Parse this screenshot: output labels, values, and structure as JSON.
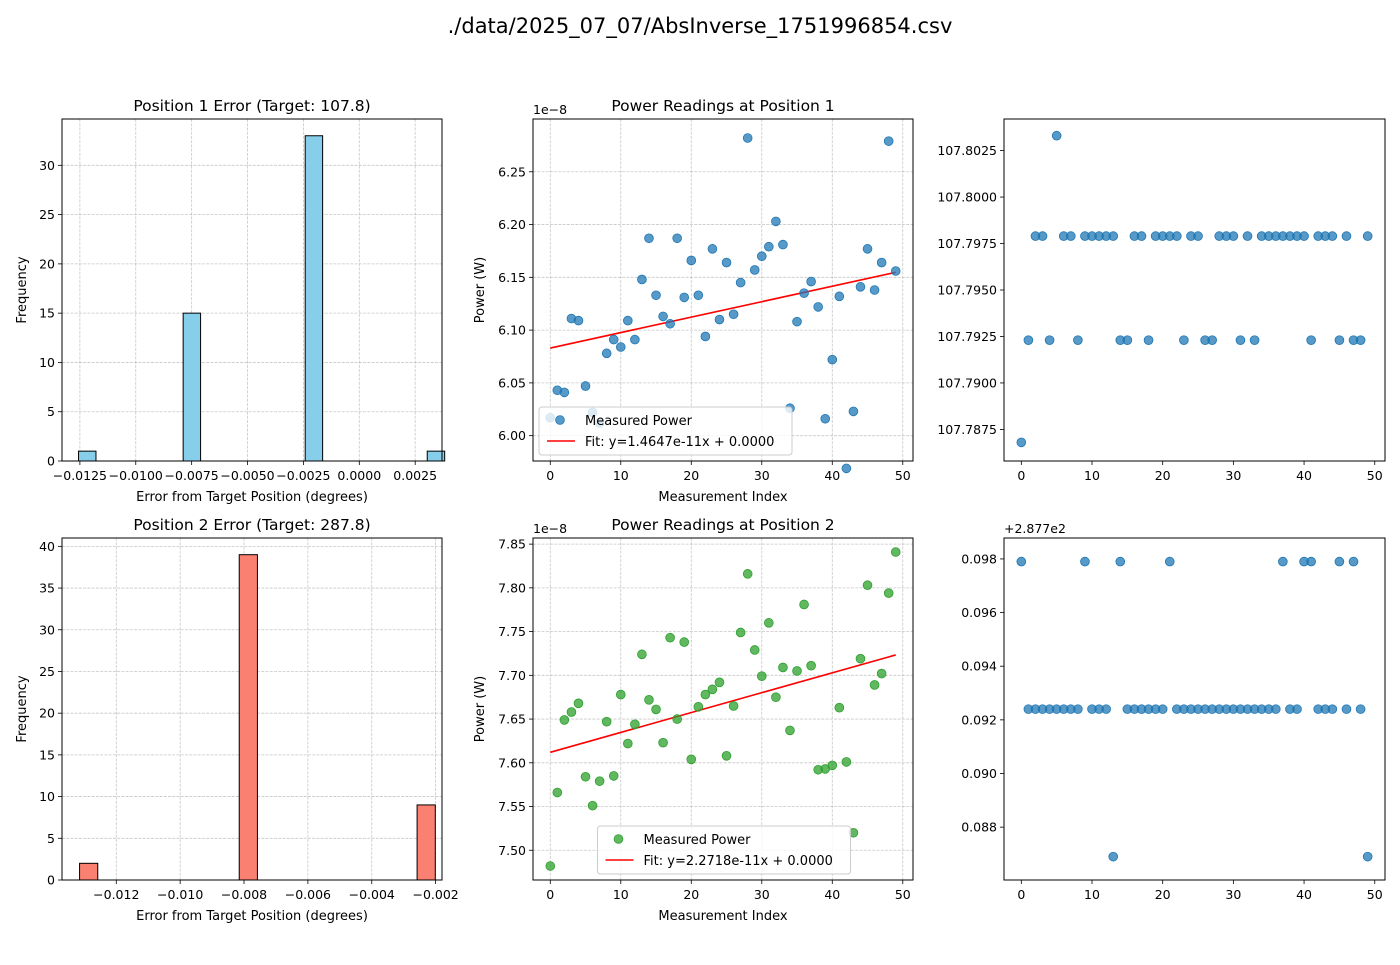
{
  "figure": {
    "suptitle": "./data/2025_07_07/AbsInverse_1751996854.csv"
  },
  "chart_data": [
    {
      "id": "p1_hist",
      "type": "bar",
      "title": "Position 1 Error (Target: 107.8)",
      "xlabel": "Error from Target Position (degrees)",
      "ylabel": "Frequency",
      "xlim": [
        -0.0133,
        0.0037
      ],
      "ylim": [
        0,
        34.7
      ],
      "xticks": [
        -0.0125,
        -0.01,
        -0.0075,
        -0.005,
        -0.0025,
        0.0,
        0.0025
      ],
      "xtick_labels": [
        "−0.0125",
        "−0.0100",
        "−0.0075",
        "−0.0050",
        "−0.0025",
        "0.0000",
        "0.0025"
      ],
      "yticks": [
        0,
        5,
        10,
        15,
        20,
        25,
        30
      ],
      "yticks_labels": [
        "0",
        "5",
        "10",
        "15",
        "20",
        "25",
        "30"
      ],
      "bins": [
        {
          "x0": -0.01256,
          "x1": -0.01178,
          "count": 1
        },
        {
          "x0": -0.00788,
          "x1": -0.0071,
          "count": 15
        },
        {
          "x0": -0.00242,
          "x1": -0.00164,
          "count": 33
        },
        {
          "x0": 0.00304,
          "x1": 0.00382,
          "count": 1
        }
      ],
      "color": "#87ceeb",
      "grid": true
    },
    {
      "id": "p2_hist",
      "type": "bar",
      "title": "Position 2 Error (Target: 287.8)",
      "xlabel": "Error from Target Position (degrees)",
      "ylabel": "Frequency",
      "xlim": [
        -0.0137,
        -0.0018
      ],
      "ylim": [
        0,
        41
      ],
      "xticks": [
        -0.012,
        -0.01,
        -0.008,
        -0.006,
        -0.004,
        -0.002
      ],
      "xtick_labels": [
        "−0.012",
        "−0.010",
        "−0.008",
        "−0.006",
        "−0.004",
        "−0.002"
      ],
      "yticks": [
        0,
        5,
        10,
        15,
        20,
        25,
        30,
        35,
        40
      ],
      "yticks_labels": [
        "0",
        "5",
        "10",
        "15",
        "20",
        "25",
        "30",
        "35",
        "40"
      ],
      "bins": [
        {
          "x0": -0.01315,
          "x1": -0.01258,
          "count": 2
        },
        {
          "x0": -0.00815,
          "x1": -0.00758,
          "count": 39
        },
        {
          "x0": -0.00258,
          "x1": -0.00201,
          "count": 9
        }
      ],
      "color": "#fa8072",
      "grid": true
    },
    {
      "id": "p1_power",
      "type": "scatter",
      "title": "Power Readings at Position 1",
      "xlabel": "Measurement Index",
      "ylabel": "Power (W)",
      "offset_label": "1e−8",
      "xlim": [
        -2.45,
        51.45
      ],
      "ylim": [
        5.976,
        6.3
      ],
      "xticks": [
        0,
        10,
        20,
        30,
        40,
        50
      ],
      "xtick_labels": [
        "0",
        "10",
        "20",
        "30",
        "40",
        "50"
      ],
      "yticks": [
        6.0,
        6.05,
        6.1,
        6.15,
        6.2,
        6.25
      ],
      "yticks_labels": [
        "6.00",
        "6.05",
        "6.10",
        "6.15",
        "6.20",
        "6.25"
      ],
      "x": [
        0,
        1,
        2,
        3,
        4,
        5,
        6,
        7,
        8,
        9,
        10,
        11,
        12,
        13,
        14,
        15,
        16,
        17,
        18,
        19,
        20,
        21,
        22,
        23,
        24,
        25,
        26,
        27,
        28,
        29,
        30,
        31,
        32,
        33,
        34,
        35,
        36,
        37,
        38,
        39,
        40,
        41,
        42,
        43,
        44,
        45,
        46,
        47,
        48,
        49
      ],
      "y": [
        6.017,
        6.043,
        6.041,
        6.111,
        6.109,
        6.047,
        6.022,
        6.012,
        6.078,
        6.091,
        6.084,
        6.109,
        6.091,
        6.148,
        6.187,
        6.133,
        6.113,
        6.106,
        6.187,
        6.131,
        6.166,
        6.133,
        6.094,
        6.177,
        6.11,
        6.164,
        6.115,
        6.145,
        6.282,
        6.157,
        6.17,
        6.179,
        6.203,
        6.181,
        6.026,
        6.108,
        6.135,
        6.146,
        6.122,
        6.016,
        6.072,
        6.132,
        5.969,
        6.023,
        6.141,
        6.177,
        6.138,
        6.164,
        6.279,
        6.156
      ],
      "series_name": "Measured Power",
      "color": "#1f77b4",
      "fit": {
        "slope": 0.0014647,
        "intercept": 6.083,
        "label": "Fit: y=1.4647e-11x + 0.0000",
        "color": "#ff0000"
      },
      "legend": "lower left",
      "grid": true
    },
    {
      "id": "p2_power",
      "type": "scatter",
      "title": "Power Readings at Position 2",
      "xlabel": "Measurement Index",
      "ylabel": "Power (W)",
      "offset_label": "1e−8",
      "xlim": [
        -2.45,
        51.45
      ],
      "ylim": [
        7.466,
        7.857
      ],
      "xticks": [
        0,
        10,
        20,
        30,
        40,
        50
      ],
      "xtick_labels": [
        "0",
        "10",
        "20",
        "30",
        "40",
        "50"
      ],
      "yticks": [
        7.5,
        7.55,
        7.6,
        7.65,
        7.7,
        7.75,
        7.8,
        7.85
      ],
      "yticks_labels": [
        "7.50",
        "7.55",
        "7.60",
        "7.65",
        "7.70",
        "7.75",
        "7.80",
        "7.85"
      ],
      "x": [
        0,
        1,
        2,
        3,
        4,
        5,
        6,
        7,
        8,
        9,
        10,
        11,
        12,
        13,
        14,
        15,
        16,
        17,
        18,
        19,
        20,
        21,
        22,
        23,
        24,
        25,
        26,
        27,
        28,
        29,
        30,
        31,
        32,
        33,
        34,
        35,
        36,
        37,
        38,
        39,
        40,
        41,
        42,
        43,
        44,
        45,
        46,
        47,
        48,
        49
      ],
      "y": [
        7.482,
        7.566,
        7.649,
        7.658,
        7.668,
        7.584,
        7.551,
        7.579,
        7.647,
        7.585,
        7.678,
        7.622,
        7.644,
        7.724,
        7.672,
        7.661,
        7.623,
        7.743,
        7.65,
        7.738,
        7.604,
        7.664,
        7.678,
        7.684,
        7.692,
        7.608,
        7.665,
        7.749,
        7.816,
        7.729,
        7.699,
        7.76,
        7.675,
        7.709,
        7.637,
        7.705,
        7.781,
        7.711,
        7.592,
        7.593,
        7.597,
        7.663,
        7.601,
        7.52,
        7.719,
        7.803,
        7.689,
        7.702,
        7.794,
        7.841
      ],
      "series_name": "Measured Power",
      "color": "#2ca02c",
      "fit": {
        "slope": 0.0022718,
        "intercept": 7.612,
        "label": "Fit: y=2.2718e-11x + 0.0000",
        "color": "#ff0000"
      },
      "legend": "lower center",
      "grid": true
    },
    {
      "id": "p1_angle",
      "type": "scatter",
      "title": "",
      "xlim": [
        -2.45,
        51.45
      ],
      "ylim": [
        107.7858,
        107.8042
      ],
      "xticks": [
        0,
        10,
        20,
        30,
        40,
        50
      ],
      "xtick_labels": [
        "0",
        "10",
        "20",
        "30",
        "40",
        "50"
      ],
      "yticks": [
        107.7875,
        107.79,
        107.7925,
        107.795,
        107.7975,
        107.8,
        107.8025
      ],
      "yticks_labels": [
        "107.7875",
        "107.7900",
        "107.7925",
        "107.7950",
        "107.7975",
        "107.8000",
        "107.8025"
      ],
      "x": [
        0,
        1,
        2,
        3,
        4,
        5,
        6,
        7,
        8,
        9,
        10,
        11,
        12,
        13,
        14,
        15,
        16,
        17,
        18,
        19,
        20,
        21,
        22,
        23,
        24,
        25,
        26,
        27,
        28,
        29,
        30,
        31,
        32,
        33,
        34,
        35,
        36,
        37,
        38,
        39,
        40,
        41,
        42,
        43,
        44,
        45,
        46,
        47,
        48,
        49
      ],
      "y": [
        107.7868,
        107.7923,
        107.7979,
        107.7979,
        107.7923,
        107.8033,
        107.7979,
        107.7979,
        107.7923,
        107.7979,
        107.7979,
        107.7979,
        107.7979,
        107.7979,
        107.7923,
        107.7923,
        107.7979,
        107.7979,
        107.7923,
        107.7979,
        107.7979,
        107.7979,
        107.7979,
        107.7923,
        107.7979,
        107.7979,
        107.7923,
        107.7923,
        107.7979,
        107.7979,
        107.7979,
        107.7923,
        107.7979,
        107.7923,
        107.7979,
        107.7979,
        107.7979,
        107.7979,
        107.7979,
        107.7979,
        107.7979,
        107.7923,
        107.7979,
        107.7979,
        107.7979,
        107.7923,
        107.7979,
        107.7923,
        107.7923,
        107.7979
      ],
      "color": "#1f77b4",
      "grid": false
    },
    {
      "id": "p2_angle",
      "type": "scatter",
      "title": "",
      "offset_label": "+2.877e2",
      "xlim": [
        -2.45,
        51.45
      ],
      "ylim": [
        0.08603,
        0.09878
      ],
      "xticks": [
        0,
        10,
        20,
        30,
        40,
        50
      ],
      "xtick_labels": [
        "0",
        "10",
        "20",
        "30",
        "40",
        "50"
      ],
      "yticks": [
        0.088,
        0.09,
        0.092,
        0.094,
        0.096,
        0.098
      ],
      "yticks_labels": [
        "0.088",
        "0.090",
        "0.092",
        "0.094",
        "0.096",
        "0.098"
      ],
      "x": [
        0,
        1,
        2,
        3,
        4,
        5,
        6,
        7,
        8,
        9,
        10,
        11,
        12,
        13,
        14,
        15,
        16,
        17,
        18,
        19,
        20,
        21,
        22,
        23,
        24,
        25,
        26,
        27,
        28,
        29,
        30,
        31,
        32,
        33,
        34,
        35,
        36,
        37,
        38,
        39,
        40,
        41,
        42,
        43,
        44,
        45,
        46,
        47,
        48,
        49
      ],
      "y": [
        0.0979,
        0.0924,
        0.0924,
        0.0924,
        0.0924,
        0.0924,
        0.0924,
        0.0924,
        0.0924,
        0.0979,
        0.0924,
        0.0924,
        0.0924,
        0.0869,
        0.0979,
        0.0924,
        0.0924,
        0.0924,
        0.0924,
        0.0924,
        0.0924,
        0.0979,
        0.0924,
        0.0924,
        0.0924,
        0.0924,
        0.0924,
        0.0924,
        0.0924,
        0.0924,
        0.0924,
        0.0924,
        0.0924,
        0.0924,
        0.0924,
        0.0924,
        0.0924,
        0.0979,
        0.0924,
        0.0924,
        0.0979,
        0.0979,
        0.0924,
        0.0924,
        0.0924,
        0.0979,
        0.0924,
        0.0979,
        0.0924,
        0.0869
      ],
      "color": "#1f77b4",
      "grid": false
    }
  ]
}
